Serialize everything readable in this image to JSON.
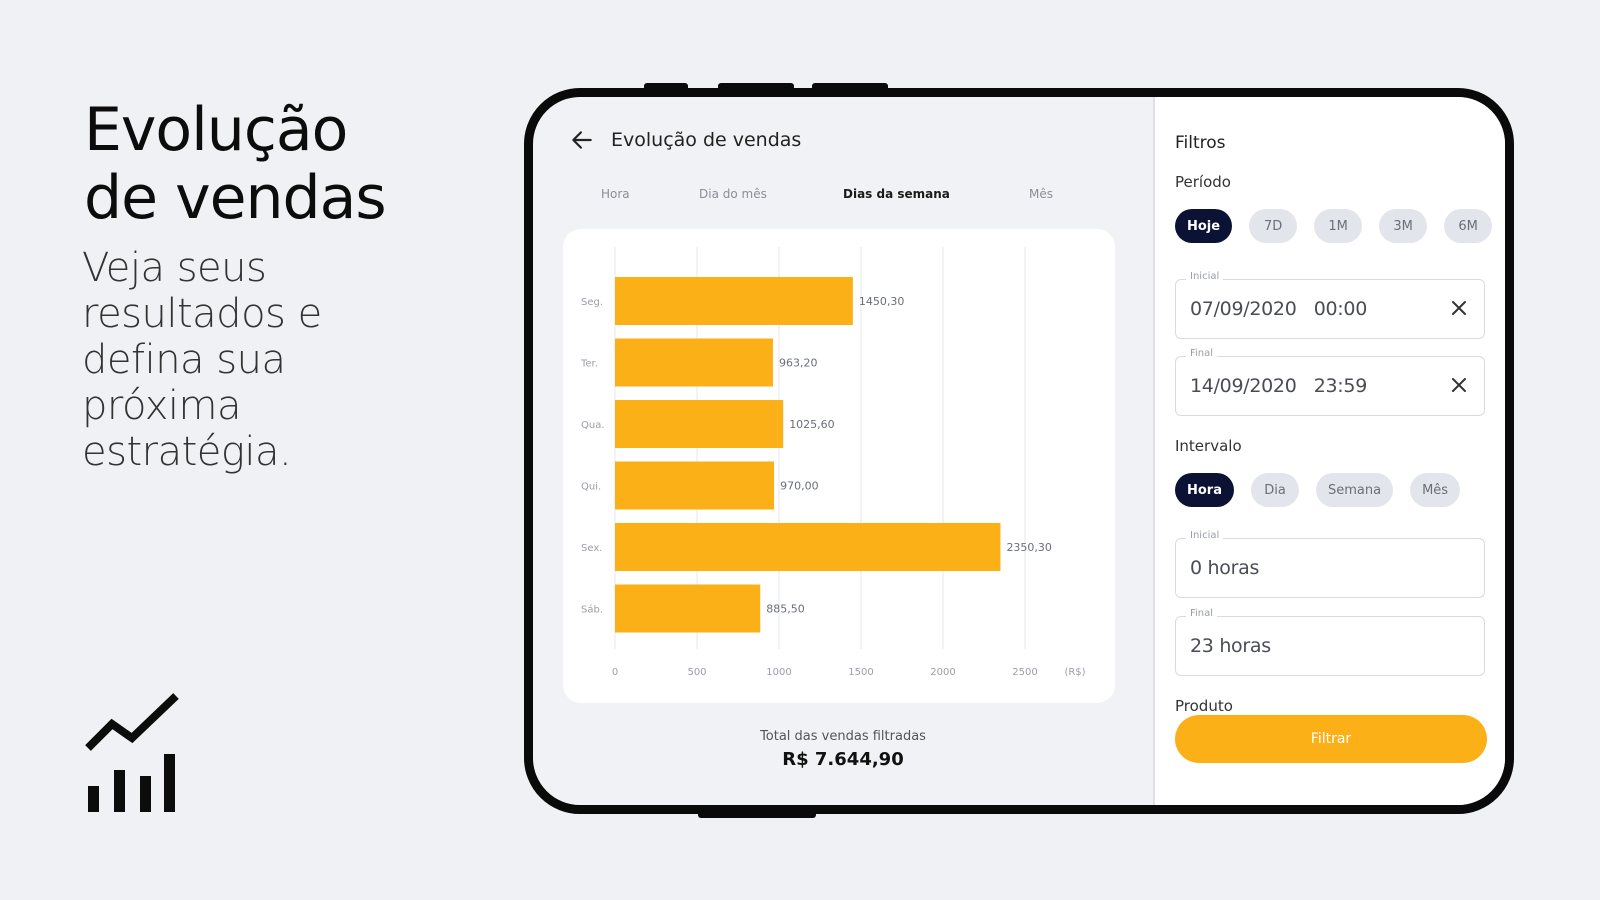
{
  "promo": {
    "title_line1": "Evolução",
    "title_line2": "de vendas",
    "subtitle_lines": [
      "Veja seus",
      "resultados e",
      "defina sua",
      "próxima",
      "estratégia."
    ],
    "icon": "trending-chart-icon"
  },
  "header": {
    "title": "Evolução de vendas",
    "back_icon": "arrow-left-icon"
  },
  "tabs": [
    {
      "label": "Hora",
      "active": false
    },
    {
      "label": "Dia do mês",
      "active": false
    },
    {
      "label": "Dias da semana",
      "active": true
    },
    {
      "label": "Mês",
      "active": false
    }
  ],
  "chart_data": {
    "type": "bar",
    "orientation": "horizontal",
    "categories": [
      "Seg.",
      "Ter.",
      "Qua.",
      "Qui.",
      "Sex.",
      "Sáb."
    ],
    "values": [
      1450.3,
      963.2,
      1025.6,
      970.0,
      2350.3,
      885.5
    ],
    "value_labels": [
      "1450,30",
      "963,20",
      "1025,60",
      "970,00",
      "2350,30",
      "885,50"
    ],
    "xticks": [
      0,
      500,
      1000,
      1500,
      2000,
      2500
    ],
    "xtick_labels": [
      "0",
      "500",
      "1000",
      "1500",
      "2000",
      "2500"
    ],
    "xunit": "(R$)",
    "xlim": [
      0,
      2500
    ],
    "grid": true,
    "bar_color": "#fbb018"
  },
  "total": {
    "label": "Total das vendas filtradas",
    "value": "R$ 7.644,90"
  },
  "filters": {
    "title": "Filtros",
    "periodo_label": "Período",
    "periodo_chips": [
      {
        "label": "Hoje",
        "active": true
      },
      {
        "label": "7D",
        "active": false
      },
      {
        "label": "1M",
        "active": false
      },
      {
        "label": "3M",
        "active": false
      },
      {
        "label": "6M",
        "active": false
      }
    ],
    "date_start": {
      "legend": "Inicial",
      "value": "07/09/2020   00:00"
    },
    "date_end": {
      "legend": "Final",
      "value": "14/09/2020   23:59"
    },
    "intervalo_label": "Intervalo",
    "intervalo_chips": [
      {
        "label": "Hora",
        "active": true
      },
      {
        "label": "Dia",
        "active": false
      },
      {
        "label": "Semana",
        "active": false
      },
      {
        "label": "Mês",
        "active": false
      }
    ],
    "hour_start": {
      "legend": "Inicial",
      "value": "0 horas"
    },
    "hour_end": {
      "legend": "Final",
      "value": "23 horas"
    },
    "produto_label": "Produto",
    "button_label": "Filtrar"
  },
  "colors": {
    "accent": "#fbb018",
    "dark_chip": "#0c1233",
    "background": "#f0f1f4"
  }
}
